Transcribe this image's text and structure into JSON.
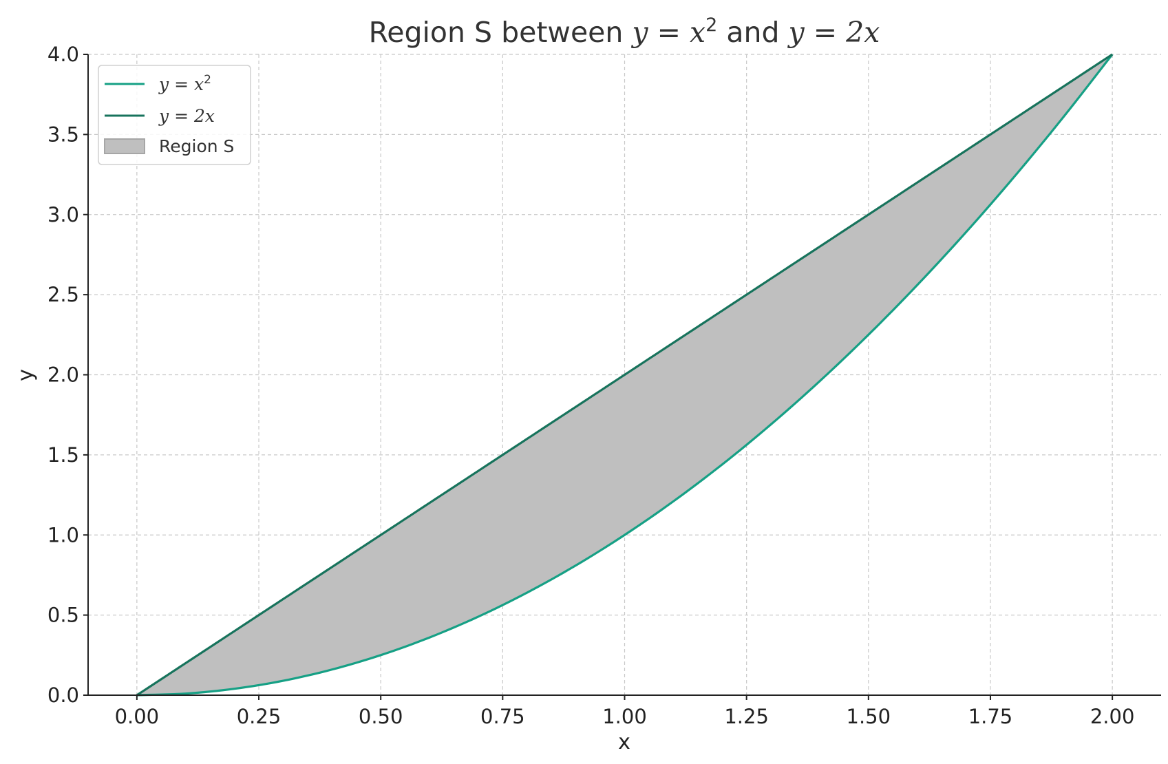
{
  "chart_data": {
    "type": "area",
    "title": {
      "prefix": "Region S between ",
      "eq1_lhs": "y",
      "eq1_rhs": "x",
      "eq1_exp": "2",
      "middle": " and ",
      "eq2_lhs": "y",
      "eq2_rhs": "2x"
    },
    "xlabel": "x",
    "ylabel": "y",
    "xlim": [
      -0.1,
      2.1
    ],
    "ylim": [
      0.0,
      4.0
    ],
    "x_ticks": [
      "0.00",
      "0.25",
      "0.50",
      "0.75",
      "1.00",
      "1.25",
      "1.50",
      "1.75",
      "2.00"
    ],
    "y_ticks": [
      "0.0",
      "0.5",
      "1.0",
      "1.5",
      "2.0",
      "2.5",
      "3.0",
      "3.5",
      "4.0"
    ],
    "grid": true,
    "legend_position": "top-left",
    "x": [
      0.0,
      0.1,
      0.2,
      0.3,
      0.4,
      0.5,
      0.6,
      0.7,
      0.8,
      0.9,
      1.0,
      1.1,
      1.2,
      1.3,
      1.4,
      1.5,
      1.6,
      1.7,
      1.8,
      1.9,
      2.0
    ],
    "series": [
      {
        "legend": {
          "lhs": "y",
          "rhs": "x",
          "exp": "2"
        },
        "color": "#16a085",
        "values": [
          0.0,
          0.01,
          0.04,
          0.09,
          0.16,
          0.25,
          0.36,
          0.49,
          0.64,
          0.81,
          1.0,
          1.21,
          1.44,
          1.69,
          1.96,
          2.25,
          2.56,
          2.89,
          3.24,
          3.61,
          4.0
        ]
      },
      {
        "legend": {
          "lhs": "y",
          "rhs": "2x",
          "exp": ""
        },
        "color": "#17735c",
        "values": [
          0.0,
          0.2,
          0.4,
          0.6,
          0.8,
          1.0,
          1.2,
          1.4,
          1.6,
          1.8,
          2.0,
          2.2,
          2.4,
          2.6,
          2.8,
          3.0,
          3.2,
          3.4,
          3.6,
          3.8,
          4.0
        ]
      }
    ],
    "region": {
      "name": "Region S",
      "color": "#bfbfbf",
      "edge_color": "#a6a6a6"
    }
  }
}
